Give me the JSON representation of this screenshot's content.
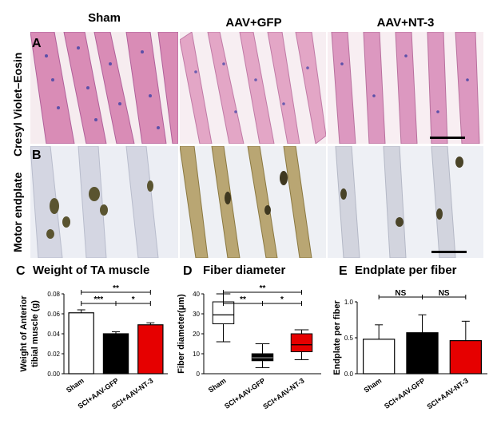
{
  "figure": {
    "columns": [
      "Sham",
      "AAV+GFP",
      "AAV+NT-3"
    ],
    "row_labels": [
      "Cresyl Violet–Eosin",
      "Motor endplate"
    ],
    "panel_letters": [
      "A",
      "B",
      "C",
      "D",
      "E"
    ]
  },
  "colors": {
    "sham": "#ffffff",
    "gfp": "#000000",
    "nt3": "#e60000"
  },
  "chart_data": [
    {
      "type": "bar",
      "panel": "C",
      "title": "Weight of TA muscle",
      "ylabel": "Weight of Anterior tibial muscle (g)",
      "ylim": [
        0,
        0.08
      ],
      "yticks": [
        "0.00",
        "0.02",
        "0.04",
        "0.06",
        "0.08"
      ],
      "categories": [
        "Sham",
        "SCI+AAV-GFP",
        "SCI+AAV-NT-3"
      ],
      "values": [
        0.061,
        0.04,
        0.049
      ],
      "errors": [
        0.003,
        0.002,
        0.002
      ],
      "significance": [
        {
          "from": 0,
          "to": 2,
          "label": "**"
        },
        {
          "from": 0,
          "to": 1,
          "label": "***"
        },
        {
          "from": 1,
          "to": 2,
          "label": "*"
        }
      ]
    },
    {
      "type": "box",
      "panel": "D",
      "title": "Fiber diameter",
      "ylabel": "Fiber diameter(μm)",
      "ylim": [
        0,
        40
      ],
      "yticks": [
        "0",
        "10",
        "20",
        "30",
        "40"
      ],
      "categories": [
        "Sham",
        "SCI+AAV-GFP",
        "SCI+AAV-NT-3"
      ],
      "boxes": [
        {
          "min": 16,
          "q1": 25,
          "median": 29.5,
          "q3": 36,
          "max": 40
        },
        {
          "min": 3,
          "q1": 6.5,
          "median": 8,
          "q3": 10,
          "max": 15
        },
        {
          "min": 7,
          "q1": 11,
          "median": 14.5,
          "q3": 20,
          "max": 22
        }
      ],
      "significance": [
        {
          "from": 0,
          "to": 2,
          "label": "**"
        },
        {
          "from": 0,
          "to": 1,
          "label": "**"
        },
        {
          "from": 1,
          "to": 2,
          "label": "*"
        }
      ]
    },
    {
      "type": "bar",
      "panel": "E",
      "title": "Endplate per fiber",
      "ylabel": "Endplate per fiber",
      "ylim": [
        0,
        1.0
      ],
      "yticks": [
        "0.0",
        "0.5",
        "1.0"
      ],
      "categories": [
        "Sham",
        "SCI+AAV-GFP",
        "SCI+AAV-NT-3"
      ],
      "values": [
        0.48,
        0.57,
        0.46
      ],
      "errors": [
        0.2,
        0.25,
        0.27
      ],
      "significance": [
        {
          "from": 0,
          "to": 1,
          "label": "NS"
        },
        {
          "from": 1,
          "to": 2,
          "label": "NS"
        }
      ]
    }
  ]
}
